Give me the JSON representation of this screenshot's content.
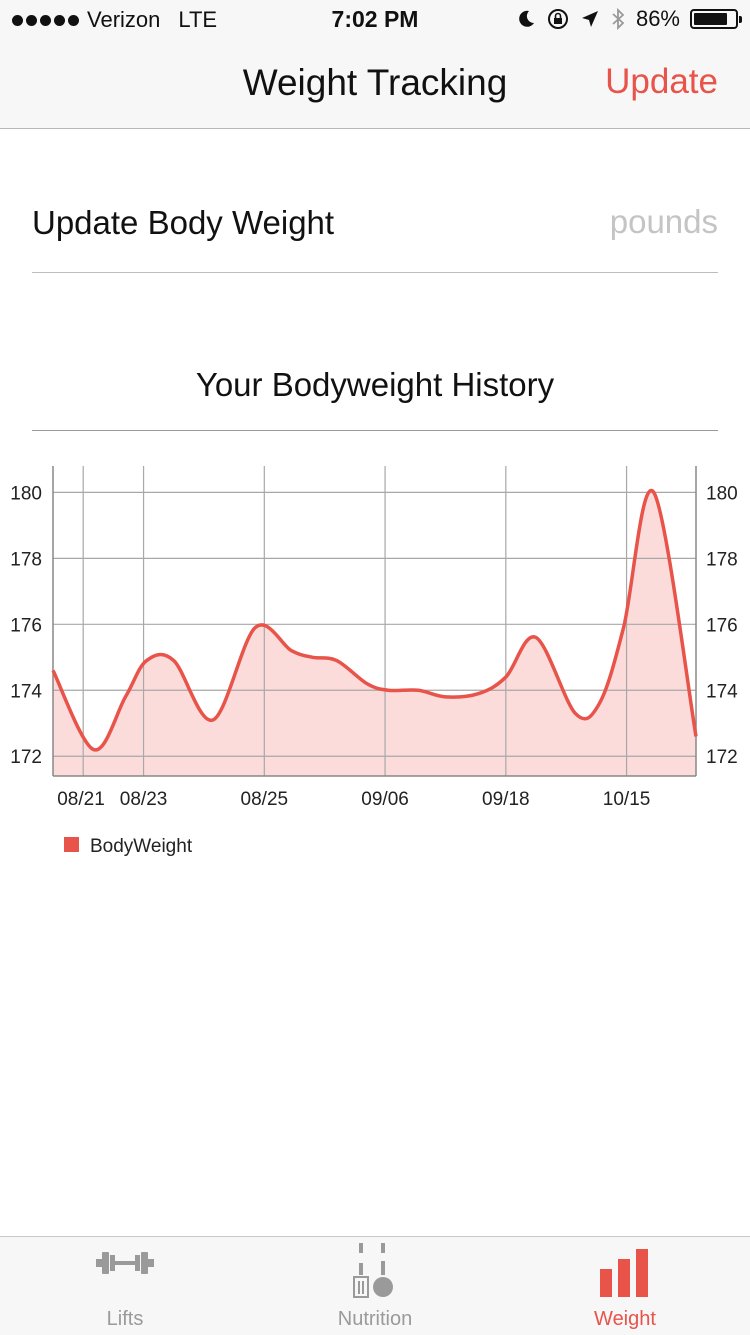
{
  "status_bar": {
    "carrier": "Verizon",
    "network": "LTE",
    "time": "7:02 PM",
    "battery_percent": "86%",
    "battery_level": 0.86
  },
  "nav": {
    "title": "Weight Tracking",
    "update_label": "Update"
  },
  "update_weight": {
    "label": "Update Body Weight",
    "placeholder": "pounds",
    "value": ""
  },
  "history": {
    "title": "Your Bodyweight History"
  },
  "colors": {
    "accent": "#e8534a",
    "line": "#e8534a",
    "fill": "#fbdcdb",
    "grid": "#a8a8a8",
    "inactive_tab": "#9a9a9a"
  },
  "chart_data": {
    "type": "line",
    "fill": true,
    "x_ticks": [
      "08/21",
      "08/23",
      "08/25",
      "09/06",
      "09/18",
      "10/15"
    ],
    "x_tick_index": [
      1,
      3,
      7,
      11,
      15,
      19
    ],
    "y_ticks": [
      172,
      174,
      176,
      178,
      180
    ],
    "ylim": [
      171.4,
      180.8
    ],
    "xlim": [
      0,
      21.3
    ],
    "grid": true,
    "legend_position": "bottom-left",
    "series": [
      {
        "name": "BodyWeight",
        "values": [
          174.6,
          172.2,
          173.8,
          174.9,
          174.9,
          173.1,
          175.9,
          175.2,
          175.0,
          174.9,
          174.2,
          174.0,
          174.0,
          173.8,
          173.9,
          174.4,
          175.6,
          173.3,
          173.6,
          175.9,
          180.0,
          172.6
        ],
        "x": [
          0,
          1.35,
          2.4,
          3.1,
          4.0,
          5.3,
          6.7,
          7.9,
          8.6,
          9.4,
          10.4,
          11.1,
          12.1,
          13.0,
          14.1,
          15.0,
          16.0,
          17.3,
          18.1,
          18.9,
          19.9,
          21.3
        ]
      }
    ]
  },
  "tabs": [
    {
      "label": "Lifts",
      "icon": "barbell-icon",
      "active": false
    },
    {
      "label": "Nutrition",
      "icon": "fork-knife-icon",
      "active": false
    },
    {
      "label": "Weight",
      "icon": "bar-chart-icon",
      "active": true
    }
  ]
}
